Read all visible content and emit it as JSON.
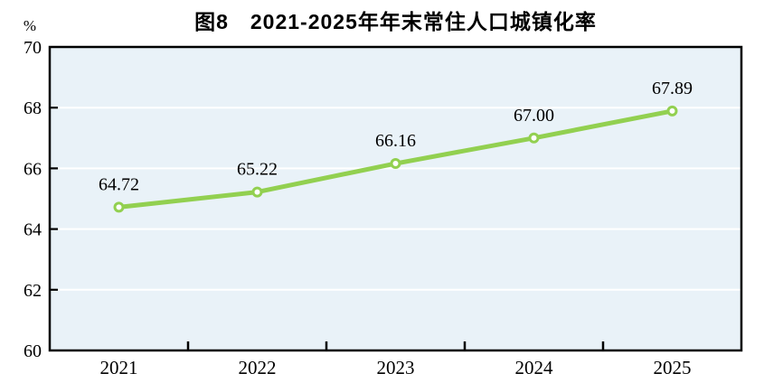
{
  "chart_data": {
    "type": "line",
    "title": "图8　2021-2025年年末常住人口城镇化率",
    "unit_label": "%",
    "categories": [
      "2021",
      "2022",
      "2023",
      "2024",
      "2025"
    ],
    "series": [
      {
        "name": "年末常住人口城镇化率",
        "values": [
          64.72,
          65.22,
          66.16,
          67.0,
          67.89
        ],
        "value_labels": [
          "64.72",
          "65.22",
          "66.16",
          "67.00",
          "67.89"
        ]
      }
    ],
    "ylim": [
      60,
      70
    ],
    "yticks": [
      60,
      62,
      64,
      66,
      68,
      70
    ],
    "grid": true,
    "legend_position": "none",
    "colors": {
      "line": "#92d050",
      "marker_fill": "#ffffff",
      "plot_bg": "#e9f2f8",
      "gridline": "#ffffff",
      "axis": "#000000",
      "text": "#000000",
      "page_bg": "#ffffff"
    }
  }
}
